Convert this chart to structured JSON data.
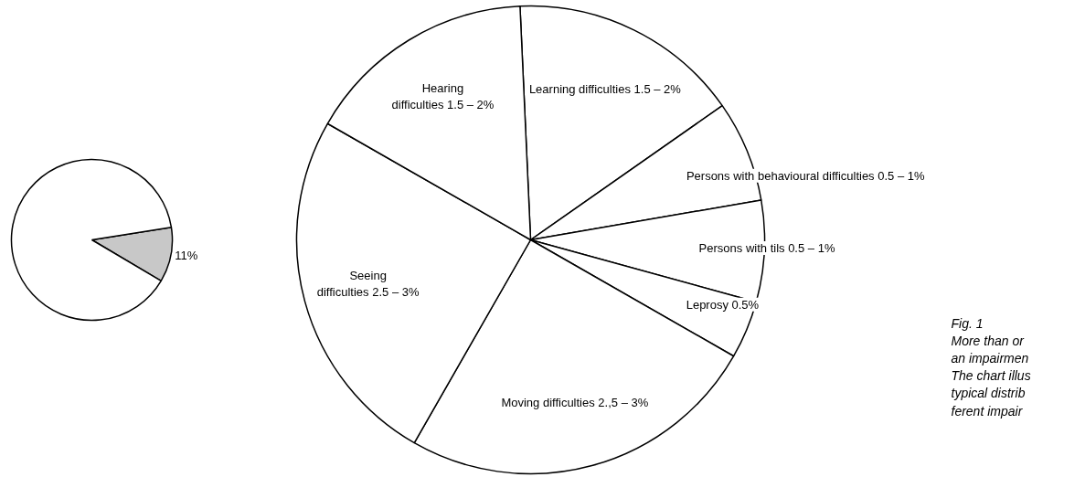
{
  "chart_data": [
    {
      "type": "pie",
      "categories": [
        null,
        null
      ],
      "values": [
        11,
        89
      ],
      "colors": [
        "#c8c8c8",
        "#ffffff"
      ],
      "value_labels": [
        "11%",
        null
      ]
    },
    {
      "type": "pie",
      "categories": [
        "Learning difficulties 1.5 – 2%",
        "Persons with behavioural difficulties 0.5 – 1%",
        "Persons with tils 0.5 – 1%",
        "Leprosy 0.5%",
        "Moving difficulties 2.,5 – 3%",
        "Seeing\ndifficulties 2.5 – 3%",
        "Hearing\ndifficulties 1.5 – 2%"
      ],
      "values": [
        16,
        7,
        7,
        4,
        25,
        25,
        16
      ],
      "colors": [
        "#ffffff",
        "#ffffff",
        "#ffffff",
        "#ffffff",
        "#ffffff",
        "#ffffff",
        "#ffffff"
      ],
      "annotations": [
        "Fig. 1\nMore than or\nan impairmen\nThe chart illus\ntypical distrib\nferent impair"
      ]
    }
  ]
}
